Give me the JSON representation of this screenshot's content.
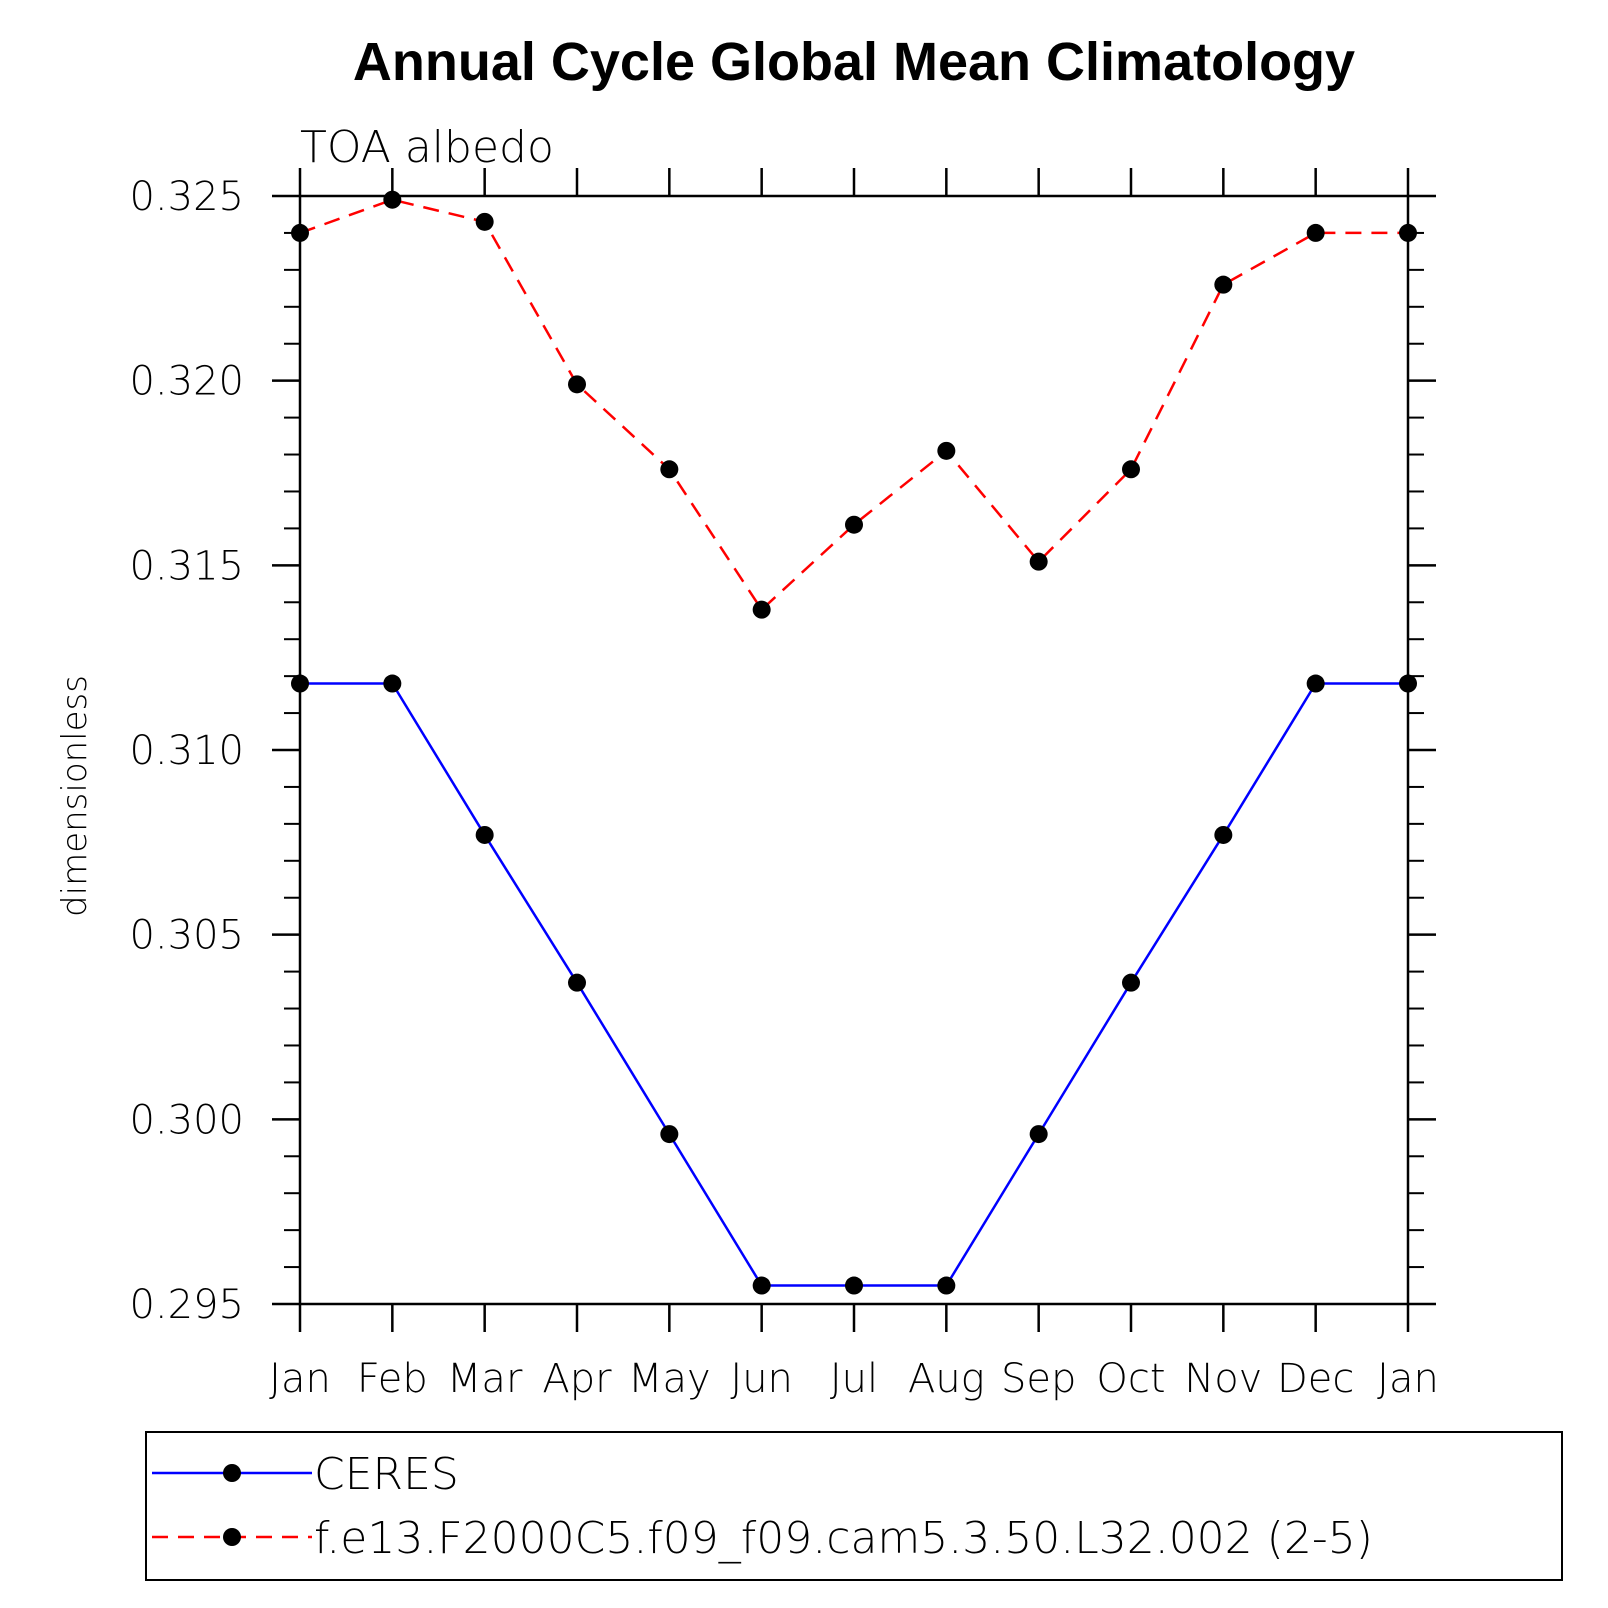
{
  "chart_data": {
    "type": "line",
    "title": "Annual Cycle Global Mean Climatology",
    "subtitle": "TOA albedo",
    "xlabel": "",
    "ylabel": "dimensionless",
    "categories": [
      "Jan",
      "Feb",
      "Mar",
      "Apr",
      "May",
      "Jun",
      "Jul",
      "Aug",
      "Sep",
      "Oct",
      "Nov",
      "Dec",
      "Jan"
    ],
    "ylim": [
      0.295,
      0.325
    ],
    "yticks": [
      "0.295",
      "0.300",
      "0.305",
      "0.310",
      "0.315",
      "0.320",
      "0.325"
    ],
    "series": [
      {
        "name": "CERES",
        "color": "#0000ff",
        "dash": "solid",
        "values": [
          0.3118,
          0.3118,
          0.3077,
          0.3037,
          0.2996,
          0.2955,
          0.2955,
          0.2955,
          0.2996,
          0.3037,
          0.3077,
          0.3118,
          0.3118
        ]
      },
      {
        "name": "f.e13.F2000C5.f09_f09.cam5.3.50.L32.002 (2-5)",
        "color": "#ff0000",
        "dash": "dashed",
        "values": [
          0.324,
          0.3249,
          0.3243,
          0.3199,
          0.3176,
          0.3138,
          0.3161,
          0.3181,
          0.3151,
          0.3176,
          0.3226,
          0.324,
          0.324
        ]
      }
    ],
    "grid": false,
    "legend_position": "bottom"
  }
}
